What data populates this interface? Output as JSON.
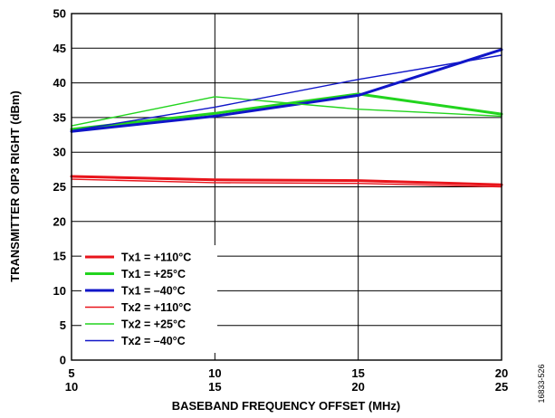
{
  "figure_id": "16833-526",
  "chart_data": {
    "type": "line",
    "title": "",
    "xlabel": "BASEBAND FREQUENCY OFFSET (MHz)",
    "ylabel": "TRANSMITTER OIP3 RIGHT (dBm)",
    "x": [
      5,
      10,
      15,
      20
    ],
    "x_tick_labels": [
      [
        "5",
        "10"
      ],
      [
        "10",
        "15"
      ],
      [
        "15",
        "20"
      ],
      [
        "20",
        "25"
      ]
    ],
    "xlim": [
      5,
      20
    ],
    "ylim": [
      0,
      50
    ],
    "y_ticks": [
      0,
      5,
      10,
      15,
      20,
      25,
      30,
      35,
      40,
      45,
      50
    ],
    "grid": true,
    "legend_position": "lower-left",
    "series": [
      {
        "name": "Tx1 = +110°C",
        "color": "#e8141b",
        "weight": "thick",
        "values": [
          26.5,
          26.0,
          25.9,
          25.3
        ]
      },
      {
        "name": "Tx1 = +25°C",
        "color": "#22d41e",
        "weight": "thick",
        "values": [
          33.3,
          35.6,
          38.4,
          35.5
        ]
      },
      {
        "name": "Tx1 = –40°C",
        "color": "#1016c8",
        "weight": "thick",
        "values": [
          33.0,
          35.2,
          38.2,
          44.8
        ]
      },
      {
        "name": "Tx2 = +110°C",
        "color": "#e8141b",
        "weight": "thin",
        "values": [
          26.1,
          25.6,
          25.5,
          25.0
        ]
      },
      {
        "name": "Tx2 = +25°C",
        "color": "#22d41e",
        "weight": "thin",
        "values": [
          33.8,
          38.0,
          36.2,
          35.2
        ]
      },
      {
        "name": "Tx2 = –40°C",
        "color": "#1016c8",
        "weight": "thin",
        "values": [
          33.1,
          36.5,
          40.5,
          44.0
        ]
      }
    ]
  }
}
